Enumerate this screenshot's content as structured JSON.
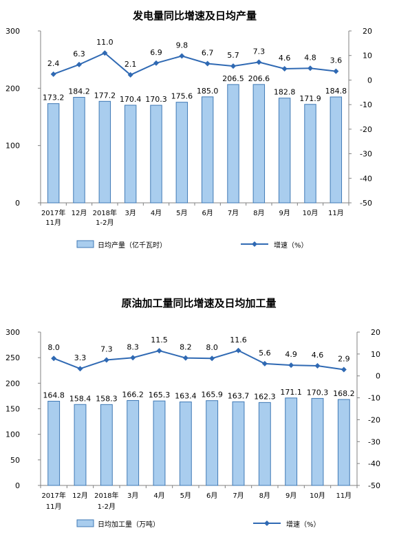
{
  "colors": {
    "bar_fill": "#a9cdee",
    "bar_stroke": "#3f79b5",
    "line": "#2f69b3",
    "axis": "#808080",
    "text": "#000000"
  },
  "chart_data": [
    {
      "type": "bar+line",
      "title": "发电量同比增速及日均产量",
      "categories": [
        [
          "2017年",
          "11月"
        ],
        [
          "12月"
        ],
        [
          "2018年",
          "1-2月"
        ],
        [
          "3月"
        ],
        [
          "4月"
        ],
        [
          "5月"
        ],
        [
          "6月"
        ],
        [
          "7月"
        ],
        [
          "8月"
        ],
        [
          "9月"
        ],
        [
          "10月"
        ],
        [
          "11月"
        ]
      ],
      "series": [
        {
          "name": "日均产量（亿千瓦时）",
          "type": "bar",
          "axis": "left",
          "values": [
            173.2,
            184.2,
            177.2,
            170.4,
            170.3,
            175.6,
            185.0,
            206.5,
            206.6,
            182.8,
            171.9,
            184.8
          ],
          "labels": [
            "173.2",
            "184.2",
            "177.2",
            "170.4",
            "170.3",
            "175.6",
            "185.0",
            "206.5",
            "206.6",
            "182.8",
            "171.9",
            "184.8"
          ]
        },
        {
          "name": "增速（%）",
          "type": "line",
          "axis": "right",
          "values": [
            2.4,
            6.3,
            11.0,
            2.1,
            6.9,
            9.8,
            6.7,
            5.7,
            7.3,
            4.6,
            4.8,
            3.6
          ],
          "labels": [
            "2.4",
            "6.3",
            "11.0",
            "2.1",
            "6.9",
            "9.8",
            "6.7",
            "5.7",
            "7.3",
            "4.6",
            "4.8",
            "3.6"
          ]
        }
      ],
      "y_left": {
        "min": 0,
        "max": 300,
        "ticks": [
          0,
          100,
          200,
          300
        ]
      },
      "y_right": {
        "min": -50,
        "max": 20,
        "ticks": [
          20,
          10,
          0,
          -10,
          -20,
          -30,
          -40,
          -50
        ]
      },
      "legend_position": "bottom"
    },
    {
      "type": "bar+line",
      "title": "原油加工量同比增速及日均加工量",
      "categories": [
        [
          "2017年",
          "11月"
        ],
        [
          "12月"
        ],
        [
          "2018年",
          "1-2月"
        ],
        [
          "3月"
        ],
        [
          "4月"
        ],
        [
          "5月"
        ],
        [
          "6月"
        ],
        [
          "7月"
        ],
        [
          "8月"
        ],
        [
          "9月"
        ],
        [
          "10月"
        ],
        [
          "11月"
        ]
      ],
      "series": [
        {
          "name": "日均加工量（万吨）",
          "type": "bar",
          "axis": "left",
          "values": [
            164.8,
            158.4,
            158.3,
            166.2,
            165.3,
            163.4,
            165.9,
            163.7,
            162.3,
            171.1,
            170.3,
            168.2
          ],
          "labels": [
            "164.8",
            "158.4",
            "158.3",
            "166.2",
            "165.3",
            "163.4",
            "165.9",
            "163.7",
            "162.3",
            "171.1",
            "170.3",
            "168.2"
          ]
        },
        {
          "name": "增速（%）",
          "type": "line",
          "axis": "right",
          "values": [
            8.0,
            3.3,
            7.3,
            8.3,
            11.5,
            8.2,
            8.0,
            11.6,
            5.6,
            4.9,
            4.6,
            2.9
          ],
          "labels": [
            "8.0",
            "3.3",
            "7.3",
            "8.3",
            "11.5",
            "8.2",
            "8.0",
            "11.6",
            "5.6",
            "4.9",
            "4.6",
            "2.9"
          ]
        }
      ],
      "y_left": {
        "min": 0,
        "max": 300,
        "ticks": [
          0,
          50,
          100,
          150,
          200,
          250,
          300
        ]
      },
      "y_right": {
        "min": -50,
        "max": 20,
        "ticks": [
          20,
          10,
          0,
          -10,
          -20,
          -30,
          -40,
          -50
        ]
      },
      "legend_position": "bottom"
    }
  ]
}
